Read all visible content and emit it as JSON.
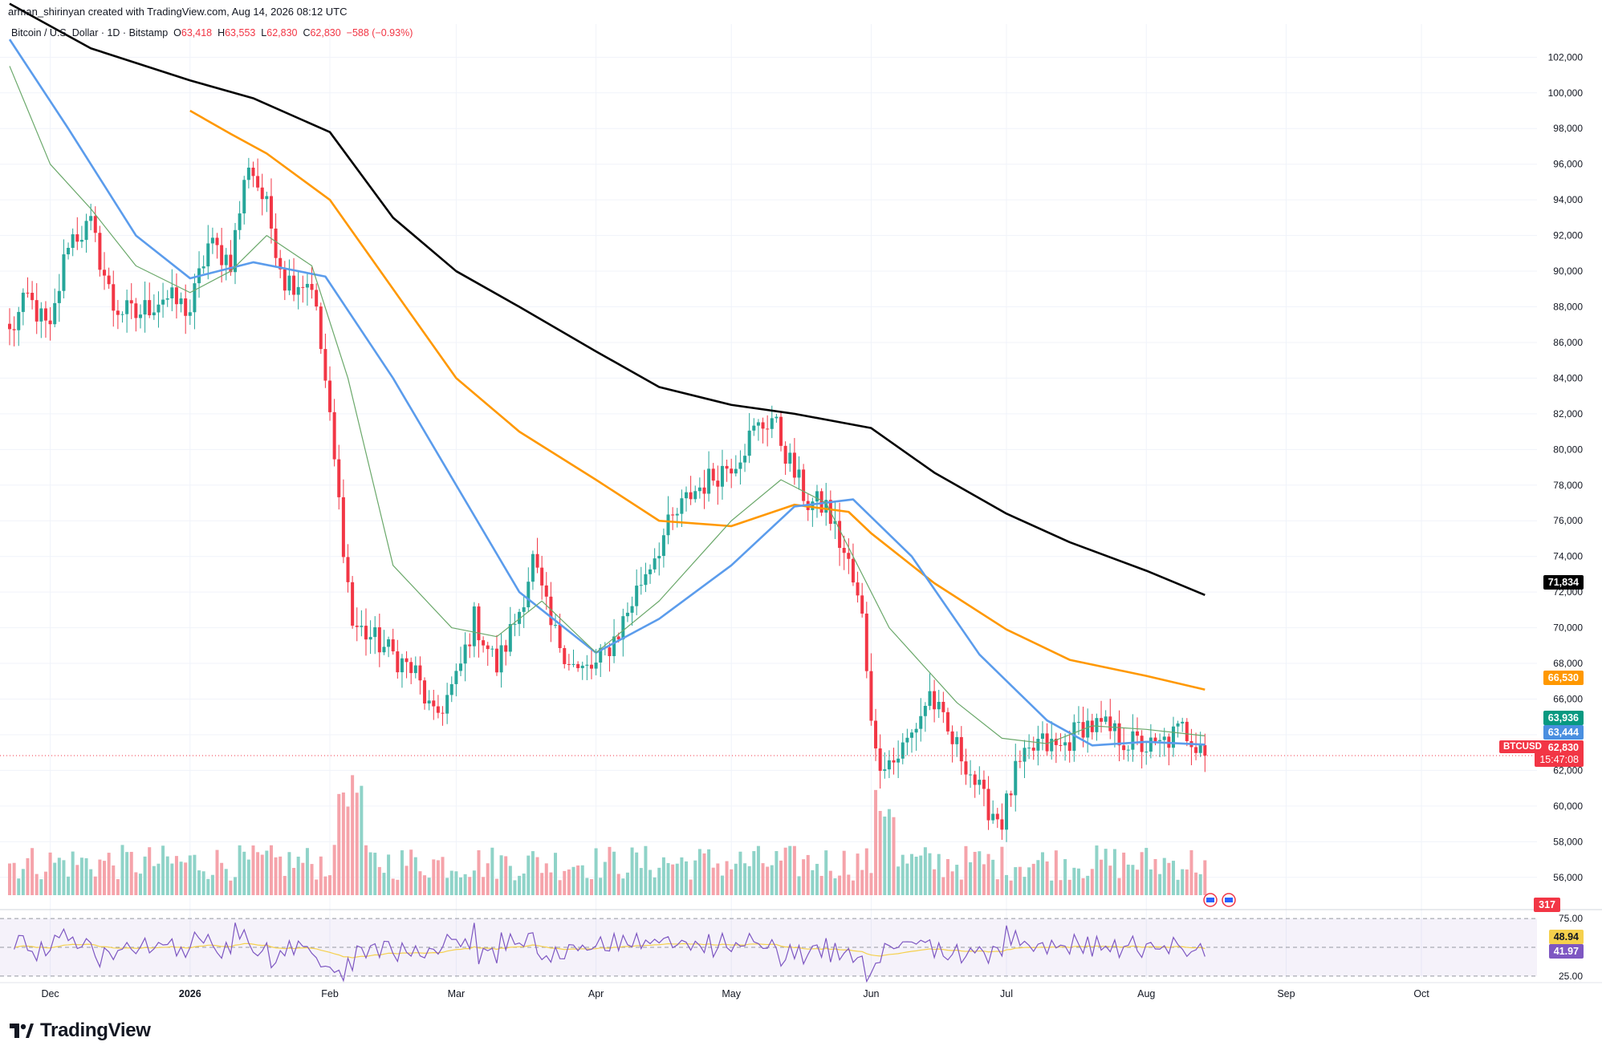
{
  "header": {
    "text": "arman_shirinyan created with TradingView.com, Aug 14, 2026 08:12 UTC"
  },
  "legend": {
    "symbol": "Bitcoin / U.S. Dollar · 1D · Bitstamp",
    "open_label": "O",
    "open": "63,418",
    "high_label": "H",
    "high": "63,553",
    "low_label": "L",
    "low": "62,830",
    "close_label": "C",
    "close": "62,830",
    "change": "−588 (−0.93%)"
  },
  "branding": {
    "name": "TradingView"
  },
  "colors": {
    "up": "#26a69a",
    "down": "#f23645",
    "up_volume": "#8fd3c8",
    "down_volume": "#f5a3aa",
    "ma_black": "#000000",
    "ma_orange": "#ff9800",
    "ma_blue": "#5b9cec",
    "ma_green": "#6aa86a",
    "rsi_line": "#7e57c2",
    "rsi_ma": "#f5d04c",
    "grid": "#f0f3fa",
    "axis_text": "#131722"
  },
  "price_tags": {
    "ma_black": "71,834",
    "ma_orange": "66,530",
    "ma_green": "63,936",
    "ma_blue": "63,444",
    "ticker": "BTCUSD",
    "last_price": "62,830",
    "countdown": "15:47:08",
    "volume": "317",
    "rsi": "48.94",
    "rsi_ma": "41.97"
  },
  "chart_data": {
    "type": "candlestick",
    "price_axis_ticks": [
      "102,000",
      "100,000",
      "98,000",
      "96,000",
      "94,000",
      "92,000",
      "90,000",
      "88,000",
      "86,000",
      "84,000",
      "82,000",
      "80,000",
      "78,000",
      "76,000",
      "74,000",
      "72,000",
      "70,000",
      "68,000",
      "66,000",
      "64,000",
      "62,000",
      "60,000",
      "58,000",
      "56,000"
    ],
    "y_range": [
      55000,
      103500
    ],
    "rsi_ticks": [
      "75.00",
      "25.00"
    ],
    "rsi_range": [
      20,
      80
    ],
    "time_axis_labels": [
      "Dec",
      "2026",
      "Feb",
      "Mar",
      "Apr",
      "May",
      "Jun",
      "Jul",
      "Aug",
      "Sep",
      "Oct"
    ],
    "price_keypoints": [
      {
        "date": "2025-11-22",
        "price": 86500
      },
      {
        "date": "2025-11-26",
        "price": 88500
      },
      {
        "date": "2025-12-01",
        "price": 86500
      },
      {
        "date": "2025-12-05",
        "price": 91800
      },
      {
        "date": "2025-12-10",
        "price": 92500
      },
      {
        "date": "2025-12-15",
        "price": 88000
      },
      {
        "date": "2025-12-20",
        "price": 87500
      },
      {
        "date": "2025-12-26",
        "price": 88600
      },
      {
        "date": "2026-01-01",
        "price": 87800
      },
      {
        "date": "2026-01-05",
        "price": 91500
      },
      {
        "date": "2026-01-10",
        "price": 90600
      },
      {
        "date": "2026-01-14",
        "price": 96200
      },
      {
        "date": "2026-01-18",
        "price": 93500
      },
      {
        "date": "2026-01-22",
        "price": 89500
      },
      {
        "date": "2026-01-28",
        "price": 89400
      },
      {
        "date": "2026-01-31",
        "price": 83800
      },
      {
        "date": "2026-02-03",
        "price": 77000
      },
      {
        "date": "2026-02-06",
        "price": 70200
      },
      {
        "date": "2026-02-10",
        "price": 69500
      },
      {
        "date": "2026-02-15",
        "price": 68500
      },
      {
        "date": "2026-02-20",
        "price": 67400
      },
      {
        "date": "2026-02-24",
        "price": 64800
      },
      {
        "date": "2026-03-01",
        "price": 67000
      },
      {
        "date": "2026-03-05",
        "price": 70500
      },
      {
        "date": "2026-03-10",
        "price": 67800
      },
      {
        "date": "2026-03-15",
        "price": 71000
      },
      {
        "date": "2026-03-18",
        "price": 73800
      },
      {
        "date": "2026-03-22",
        "price": 70000
      },
      {
        "date": "2026-03-28",
        "price": 67500
      },
      {
        "date": "2026-04-01",
        "price": 67800
      },
      {
        "date": "2026-04-06",
        "price": 69800
      },
      {
        "date": "2026-04-12",
        "price": 73200
      },
      {
        "date": "2026-04-17",
        "price": 75600
      },
      {
        "date": "2026-04-22",
        "price": 77500
      },
      {
        "date": "2026-04-27",
        "price": 78500
      },
      {
        "date": "2026-05-02",
        "price": 79500
      },
      {
        "date": "2026-05-06",
        "price": 81000
      },
      {
        "date": "2026-05-10",
        "price": 81800
      },
      {
        "date": "2026-05-14",
        "price": 79200
      },
      {
        "date": "2026-05-18",
        "price": 77000
      },
      {
        "date": "2026-05-22",
        "price": 76800
      },
      {
        "date": "2026-05-27",
        "price": 73500
      },
      {
        "date": "2026-05-30",
        "price": 70500
      },
      {
        "date": "2026-06-02",
        "price": 62800
      },
      {
        "date": "2026-06-06",
        "price": 62500
      },
      {
        "date": "2026-06-10",
        "price": 64000
      },
      {
        "date": "2026-06-14",
        "price": 66300
      },
      {
        "date": "2026-06-18",
        "price": 64000
      },
      {
        "date": "2026-06-22",
        "price": 62500
      },
      {
        "date": "2026-06-26",
        "price": 60200
      },
      {
        "date": "2026-06-30",
        "price": 59200
      },
      {
        "date": "2026-07-03",
        "price": 61800
      },
      {
        "date": "2026-07-08",
        "price": 63500
      },
      {
        "date": "2026-07-13",
        "price": 63200
      },
      {
        "date": "2026-07-18",
        "price": 64600
      },
      {
        "date": "2026-07-23",
        "price": 64300
      },
      {
        "date": "2026-07-28",
        "price": 63600
      },
      {
        "date": "2026-08-03",
        "price": 63200
      },
      {
        "date": "2026-08-09",
        "price": 64300
      },
      {
        "date": "2026-08-13",
        "price": 63418
      },
      {
        "date": "2026-08-14",
        "price": 62830
      }
    ],
    "moving_averages": [
      {
        "color": "#000000",
        "points": [
          [
            "2025-11-22",
            105000
          ],
          [
            "2025-12-10",
            102500
          ],
          [
            "2026-01-01",
            100700
          ],
          [
            "2026-01-15",
            99700
          ],
          [
            "2026-02-01",
            97800
          ],
          [
            "2026-02-15",
            93000
          ],
          [
            "2026-03-01",
            90000
          ],
          [
            "2026-03-15",
            88000
          ],
          [
            "2026-04-01",
            85500
          ],
          [
            "2026-04-15",
            83500
          ],
          [
            "2026-05-01",
            82500
          ],
          [
            "2026-05-15",
            82000
          ],
          [
            "2026-06-01",
            81200
          ],
          [
            "2026-06-15",
            78700
          ],
          [
            "2026-07-01",
            76400
          ],
          [
            "2026-07-15",
            74800
          ],
          [
            "2026-08-01",
            73200
          ],
          [
            "2026-08-14",
            71834
          ]
        ]
      },
      {
        "color": "#ff9800",
        "points": [
          [
            "2026-01-01",
            99000
          ],
          [
            "2026-01-10",
            97700
          ],
          [
            "2026-01-18",
            96600
          ],
          [
            "2026-02-01",
            94000
          ],
          [
            "2026-02-15",
            89000
          ],
          [
            "2026-03-01",
            84000
          ],
          [
            "2026-03-15",
            81000
          ],
          [
            "2026-04-01",
            78300
          ],
          [
            "2026-04-15",
            76000
          ],
          [
            "2026-05-01",
            75700
          ],
          [
            "2026-05-15",
            76900
          ],
          [
            "2026-05-27",
            76500
          ],
          [
            "2026-06-01",
            75300
          ],
          [
            "2026-06-15",
            72500
          ],
          [
            "2026-07-01",
            69900
          ],
          [
            "2026-07-15",
            68200
          ],
          [
            "2026-08-01",
            67300
          ],
          [
            "2026-08-14",
            66530
          ]
        ]
      },
      {
        "color": "#5b9cec",
        "points": [
          [
            "2025-11-22",
            103000
          ],
          [
            "2025-12-05",
            98000
          ],
          [
            "2025-12-20",
            92000
          ],
          [
            "2026-01-01",
            89600
          ],
          [
            "2026-01-15",
            90500
          ],
          [
            "2026-01-31",
            89700
          ],
          [
            "2026-02-15",
            84000
          ],
          [
            "2026-03-01",
            78000
          ],
          [
            "2026-03-15",
            72000
          ],
          [
            "2026-04-01",
            68600
          ],
          [
            "2026-04-15",
            70500
          ],
          [
            "2026-05-01",
            73500
          ],
          [
            "2026-05-15",
            76800
          ],
          [
            "2026-05-28",
            77200
          ],
          [
            "2026-06-10",
            74000
          ],
          [
            "2026-06-25",
            68500
          ],
          [
            "2026-07-10",
            64800
          ],
          [
            "2026-07-20",
            63400
          ],
          [
            "2026-08-01",
            63600
          ],
          [
            "2026-08-14",
            63444
          ]
        ]
      },
      {
        "color": "#6aa86a",
        "points": [
          [
            "2025-11-22",
            101500
          ],
          [
            "2025-12-01",
            96000
          ],
          [
            "2025-12-10",
            93500
          ],
          [
            "2025-12-20",
            90300
          ],
          [
            "2026-01-01",
            88800
          ],
          [
            "2026-01-10",
            90000
          ],
          [
            "2026-01-18",
            92000
          ],
          [
            "2026-01-28",
            90300
          ],
          [
            "2026-02-05",
            84000
          ],
          [
            "2026-02-15",
            73500
          ],
          [
            "2026-02-28",
            70000
          ],
          [
            "2026-03-10",
            69500
          ],
          [
            "2026-03-20",
            71500
          ],
          [
            "2026-04-01",
            68600
          ],
          [
            "2026-04-15",
            71500
          ],
          [
            "2026-05-01",
            76000
          ],
          [
            "2026-05-12",
            78300
          ],
          [
            "2026-05-22",
            77000
          ],
          [
            "2026-06-05",
            70000
          ],
          [
            "2026-06-20",
            65800
          ],
          [
            "2026-06-30",
            63800
          ],
          [
            "2026-07-10",
            63500
          ],
          [
            "2026-07-20",
            64500
          ],
          [
            "2026-08-01",
            64300
          ],
          [
            "2026-08-14",
            63936
          ]
        ]
      }
    ],
    "last_price": 62830,
    "rsi_current": 48.94,
    "rsi_ma_current": 41.97
  }
}
